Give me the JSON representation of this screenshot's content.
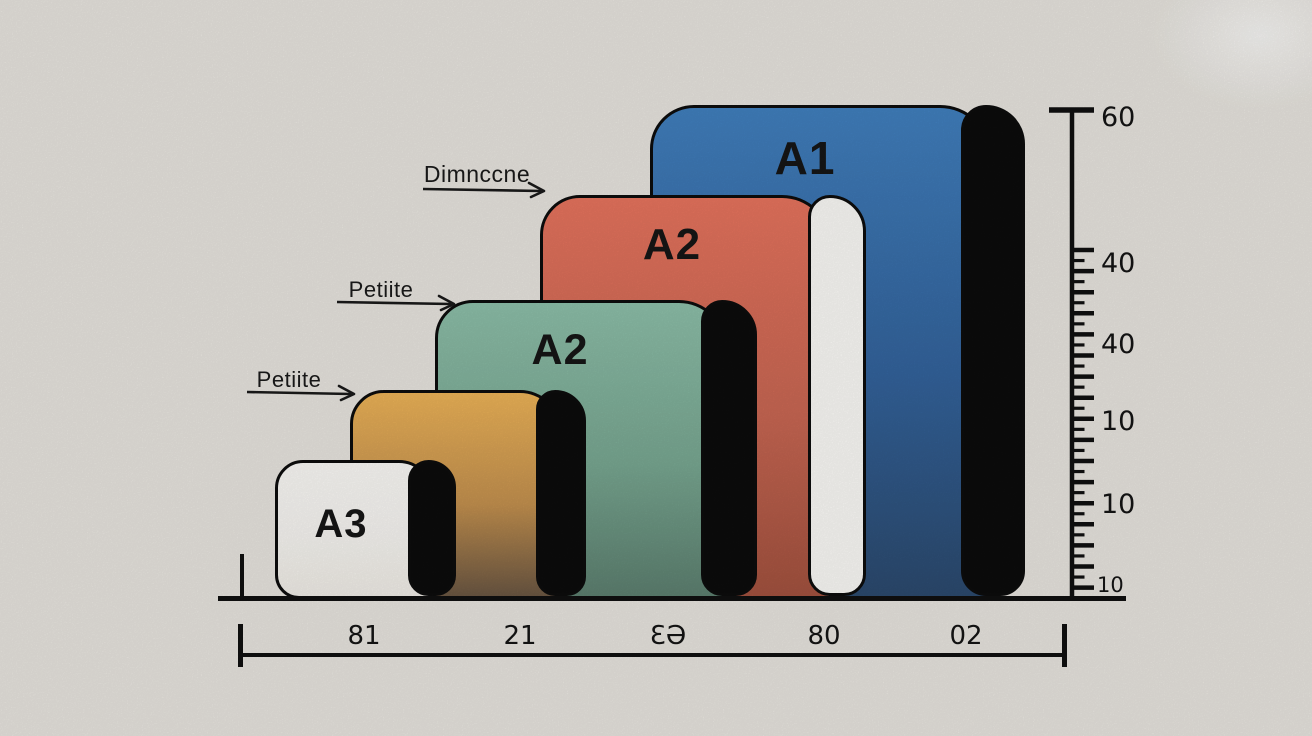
{
  "background": "#e9e6e0",
  "ink": "#111111",
  "bars": [
    {
      "name": "a1-sheet-blue",
      "label": "A1",
      "color_top": "#4180bf",
      "color_mid": "#33639c",
      "color_bottom": "#2c4a6e",
      "spine_color": "#0c0c0c"
    },
    {
      "name": "a2-sheet-coral",
      "label": "A2",
      "color_top": "#e8745e",
      "color_mid": "#c96753",
      "color_bottom": "#a3523f",
      "spine_color": "#fcfbf8"
    },
    {
      "name": "a2-sheet-green",
      "label": "A2",
      "color_top": "#8ec0aa",
      "color_mid": "#79a892",
      "color_bottom": "#5d8070",
      "spine_color": "#0c0c0c"
    },
    {
      "name": "sheet-yellow",
      "label": "",
      "color_top": "#eeb458",
      "color_mid": "#c4914f",
      "color_bottom": "#6b5743",
      "spine_color": "#0c0c0c"
    },
    {
      "name": "a3-sheet-white",
      "label": "A3",
      "color_top": "#fcfbf8",
      "color_mid": "#f8f6f2",
      "color_bottom": "#f1eee8",
      "spine_color": "#0c0c0c"
    }
  ],
  "annotations": [
    {
      "label": "Dimnccne"
    },
    {
      "label": "Petiite"
    },
    {
      "label": "Petiite"
    }
  ],
  "ruler_labels": [
    "60",
    "40",
    "40",
    "10",
    "10",
    "10"
  ],
  "axis_labels": [
    "81",
    "21",
    "ƐƏ",
    "80",
    "02"
  ],
  "chart_data": {
    "type": "bar",
    "title": "",
    "categories": [
      "A3",
      "",
      "A2",
      "A2",
      "A1"
    ],
    "values": [
      17,
      26,
      37,
      50,
      60
    ],
    "ylim": [
      0,
      60
    ],
    "y_axis_tick_labels_shown": [
      "60",
      "40",
      "40",
      "10",
      "10",
      "10"
    ],
    "x_axis_tick_labels_shown": [
      "81",
      "21",
      "ƐƏ",
      "80",
      "02"
    ],
    "annotation_texts": [
      "Dimnccne",
      "Petiite",
      "Petiite"
    ],
    "bar_colors": [
      "#fcfbf8",
      "#eeb458",
      "#8ec0aa",
      "#e8745e",
      "#4180bf"
    ],
    "spine_colors": [
      "#0c0c0c",
      "#0c0c0c",
      "#0c0c0c",
      "#fcfbf8",
      "#0c0c0c"
    ],
    "legend_position": "none",
    "grid": false
  }
}
